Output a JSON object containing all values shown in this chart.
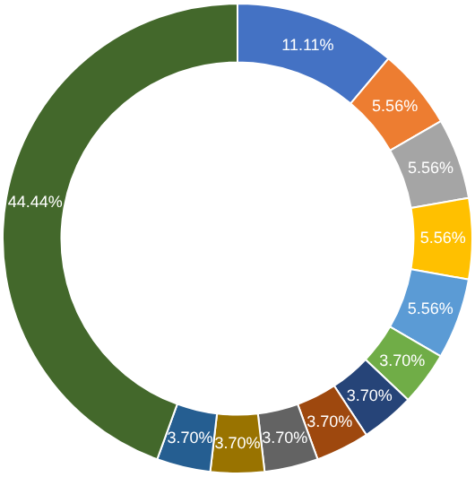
{
  "chart_data": {
    "type": "donut",
    "categories": [
      null,
      null,
      null,
      null,
      null,
      null,
      null,
      null,
      null,
      null,
      null,
      null
    ],
    "values": [
      11.11,
      5.56,
      5.56,
      5.56,
      5.56,
      3.7,
      3.7,
      3.7,
      3.7,
      3.7,
      3.7,
      44.44
    ],
    "value_labels": [
      "11.11%",
      "5.56%",
      "5.56%",
      "5.56%",
      "5.56%",
      "3.70%",
      "3.70%",
      "3.70%",
      "3.70%",
      "3.70%",
      "3.70%",
      "44.44%"
    ],
    "colors": [
      "#4472c4",
      "#ed7d31",
      "#a5a5a5",
      "#ffc000",
      "#5b9bd5",
      "#70ad47",
      "#264478",
      "#9e480e",
      "#636363",
      "#997300",
      "#255e91",
      "#43682b"
    ],
    "legend": false
  }
}
